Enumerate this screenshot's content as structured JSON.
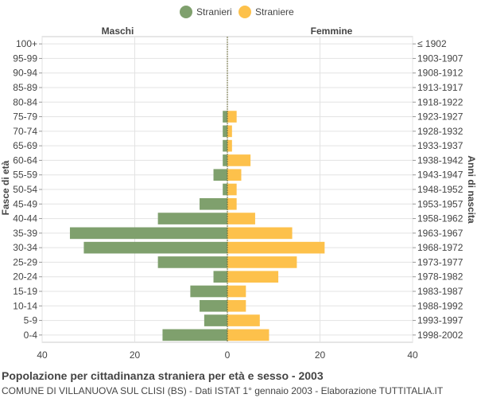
{
  "chart_data": {
    "type": "bar",
    "title": "Popolazione per cittadinanza straniera per età e sesso - 2003",
    "subtitle": "COMUNE DI VILLANUOVA SUL CLISI (BS) - Dati ISTAT 1° gennaio 2003 - Elaborazione TUTTITALIA.IT",
    "left_label": "Maschi",
    "right_label": "Femmine",
    "ylabel_left": "Fasce di età",
    "ylabel_right": "Anni di nascita",
    "legend": [
      "Stranieri",
      "Straniere"
    ],
    "legend_position": "top-center",
    "colors": {
      "males": "#7fa06d",
      "females": "#fdc14b",
      "center_line": "#6b6b3a"
    },
    "xlim": [
      -40,
      40
    ],
    "xticks": [
      "40",
      "20",
      "0",
      "20",
      "40"
    ],
    "grid": true,
    "age_groups": [
      "100+",
      "95-99",
      "90-94",
      "85-89",
      "80-84",
      "75-79",
      "70-74",
      "65-69",
      "60-64",
      "55-59",
      "50-54",
      "45-49",
      "40-44",
      "35-39",
      "30-34",
      "25-29",
      "20-24",
      "15-19",
      "10-14",
      "5-9",
      "0-4"
    ],
    "birth_years": [
      "≤ 1902",
      "1903-1907",
      "1908-1912",
      "1913-1917",
      "1918-1922",
      "1923-1927",
      "1928-1932",
      "1933-1937",
      "1938-1942",
      "1943-1947",
      "1948-1952",
      "1953-1957",
      "1958-1962",
      "1963-1967",
      "1968-1972",
      "1973-1977",
      "1978-1982",
      "1983-1987",
      "1988-1992",
      "1993-1997",
      "1998-2002"
    ],
    "series": [
      {
        "name": "Stranieri",
        "values": [
          0,
          0,
          0,
          0,
          0,
          1,
          1,
          1,
          1,
          3,
          1,
          6,
          15,
          34,
          31,
          15,
          3,
          8,
          6,
          5,
          14
        ]
      },
      {
        "name": "Straniere",
        "values": [
          0,
          0,
          0,
          0,
          0,
          2,
          1,
          1,
          5,
          3,
          2,
          2,
          6,
          14,
          21,
          15,
          11,
          4,
          4,
          7,
          9
        ]
      }
    ]
  }
}
